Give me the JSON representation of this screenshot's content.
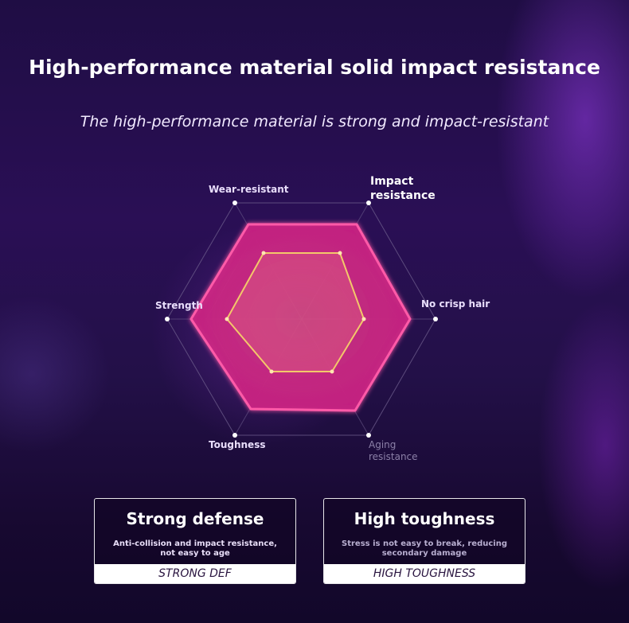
{
  "header": {
    "title": "High-performance material solid impact resistance",
    "subtitle": "The high-performance material is strong and impact-resistant"
  },
  "radar": {
    "axes": {
      "wear": "Wear-resistant",
      "impact": "Impact resistance",
      "crisp": "No crisp hair",
      "aging": "Aging resistance",
      "toughness": "Toughness",
      "strength": "Strength"
    },
    "colors": {
      "outer_fill": "#d02a8a",
      "outer_stroke": "#ff5aa8",
      "inner_stroke": "#f3c86a",
      "grid": "#6a5a8a"
    }
  },
  "cards": [
    {
      "title": "Strong defense",
      "description": "Anti-collision and impact resistance, not easy to age",
      "tag": "STRONG DEF"
    },
    {
      "title": "High toughness",
      "description": "Stress is not easy to break, reducing secondary damage",
      "tag": "HIGH TOUGHNESS"
    }
  ]
}
